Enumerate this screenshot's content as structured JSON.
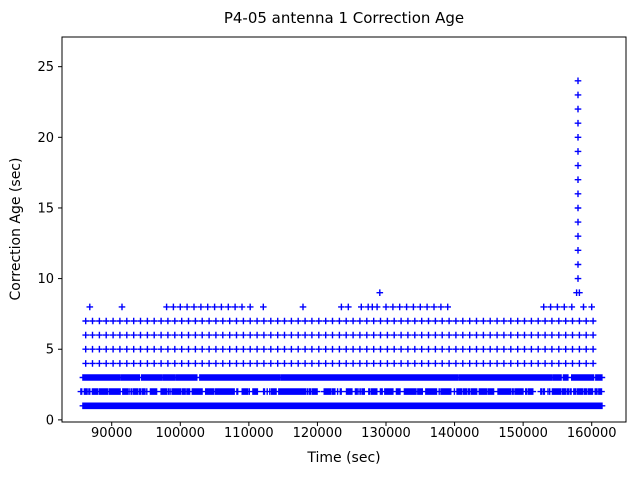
{
  "chart_data": {
    "type": "scatter",
    "title": "P4-05 antenna 1 Correction Age",
    "xlabel": "Time (sec)",
    "ylabel": "Correction Age (sec)",
    "marker": "plus",
    "marker_color": "#0000FF",
    "marker_size_px": 6.6,
    "marker_stroke_px": 1.4,
    "grid": false,
    "legend": null,
    "xlim": [
      82750,
      165000
    ],
    "ylim": [
      -0.15,
      27.1
    ],
    "xticks": [
      90000,
      100000,
      110000,
      120000,
      130000,
      140000,
      150000,
      160000
    ],
    "yticks": [
      0,
      5,
      10,
      15,
      20,
      25
    ],
    "bands": [
      {
        "y": 1,
        "x_start": 85800,
        "x_end": 161500,
        "step_sec": 100,
        "pattern": "solid",
        "seed": 1,
        "p_stay_on": 1.0,
        "p_start_on": 1.0
      },
      {
        "y": 2,
        "x_start": 85500,
        "x_end": 161500,
        "step_sec": 130,
        "pattern": "clustered",
        "seed": 42,
        "p_stay_on": 0.82,
        "p_start_on": 0.5
      },
      {
        "y": 3,
        "x_start": 85800,
        "x_end": 161500,
        "step_sec": 110,
        "pattern": "clustered",
        "seed": 99,
        "p_stay_on": 0.99,
        "p_start_on": 0.55
      },
      {
        "y": 4,
        "x_start": 86200,
        "x_end": 160200,
        "step_sec": 1000,
        "pattern": "solid",
        "seed": 4,
        "p_stay_on": 1.0,
        "p_start_on": 1.0
      },
      {
        "y": 5,
        "x_start": 86200,
        "x_end": 160200,
        "step_sec": 1000,
        "pattern": "solid",
        "seed": 5,
        "p_stay_on": 1.0,
        "p_start_on": 1.0
      },
      {
        "y": 6,
        "x_start": 86200,
        "x_end": 160200,
        "step_sec": 1000,
        "pattern": "solid",
        "seed": 6,
        "p_stay_on": 1.0,
        "p_start_on": 1.0
      },
      {
        "y": 7,
        "x_start": 86200,
        "x_end": 160200,
        "step_sec": 1000,
        "pattern": "solid",
        "seed": 7,
        "p_stay_on": 1.0,
        "p_start_on": 1.0
      }
    ],
    "points_y8": [
      86800,
      91500,
      98000,
      99000,
      100000,
      101000,
      102000,
      103000,
      104000,
      105000,
      106000,
      107000,
      108000,
      109000,
      110200,
      112100,
      117900,
      123500,
      124500,
      126400,
      127400,
      128000,
      128700,
      130000,
      131000,
      132000,
      133000,
      134000,
      135000,
      136000,
      137000,
      138000,
      139000,
      153000,
      154000,
      155000,
      156000,
      157100,
      158800,
      160000
    ],
    "points_y9": [
      129100,
      157800,
      158200
    ],
    "spike": {
      "x": 158000,
      "y_min": 10,
      "y_max": 24,
      "y_step": 1
    },
    "colors": {
      "background": "#FFFFFF",
      "axes": "#000000",
      "text": "#000000",
      "marker": "#0000FF"
    }
  }
}
